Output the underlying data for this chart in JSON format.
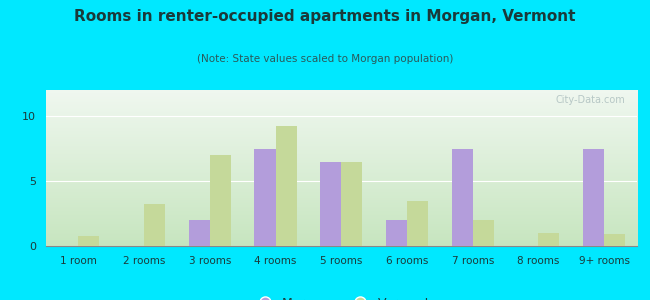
{
  "title": "Rooms in renter-occupied apartments in Morgan, Vermont",
  "subtitle": "(Note: State values scaled to Morgan population)",
  "categories": [
    "1 room",
    "2 rooms",
    "3 rooms",
    "4 rooms",
    "5 rooms",
    "6 rooms",
    "7 rooms",
    "8 rooms",
    "9+ rooms"
  ],
  "morgan_values": [
    0,
    0,
    2.0,
    7.5,
    6.5,
    2.0,
    7.5,
    0,
    7.5
  ],
  "vermont_values": [
    0.8,
    3.2,
    7.0,
    9.2,
    6.5,
    3.5,
    2.0,
    1.0,
    0.9
  ],
  "morgan_color": "#b39ddb",
  "vermont_color": "#c5d99a",
  "background_outer": "#00e8ff",
  "background_top": "#f0f8f0",
  "background_bottom": "#c8e6c0",
  "ylim": [
    0,
    12
  ],
  "yticks": [
    0,
    5,
    10
  ],
  "bar_width": 0.32,
  "legend_labels": [
    "Morgan",
    "Vermont"
  ],
  "watermark": "City-Data.com",
  "title_color": "#1a3a3a",
  "subtitle_color": "#2a5a5a"
}
